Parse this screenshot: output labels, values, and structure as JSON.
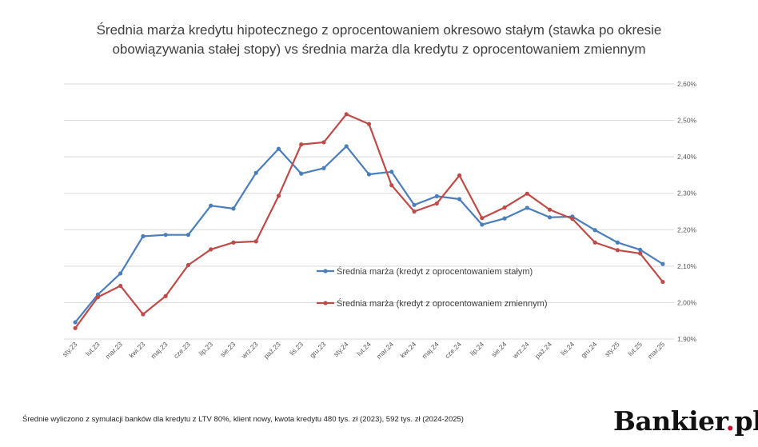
{
  "title_line1": "Średnia marża kredytu hipotecznego z oprocentowaniem okresowo stałym (stawka po okresie",
  "title_line2": "obowiązywania stałej stopy) vs średnia marża dla kredytu z oprocentowaniem zmiennym",
  "footnote": "Średnie wyliczono z symulacji banków dla kredytu z LTV 80%, klient nowy, kwota kredytu 480 tys. zł (2023), 592 tys. zł (2024-2025)",
  "logo": {
    "text": "Bankier",
    "dot": ".",
    "suffix": "pl"
  },
  "colors": {
    "fixed": "#4a7ebb",
    "variable": "#be4b48",
    "grid": "#d9d9d9"
  },
  "chart_data": {
    "type": "line",
    "categories": [
      "sty.23",
      "lut.23",
      "mar.23",
      "kwi.23",
      "maj.23",
      "cze.23",
      "lip.23",
      "sie.23",
      "wrz.23",
      "paź.23",
      "lis.23",
      "gru.23",
      "sty.24",
      "lut.24",
      "mar.24",
      "kwi.24",
      "maj.24",
      "cze.24",
      "lip.24",
      "sie.24",
      "wrz.24",
      "paź.24",
      "lis.24",
      "gru.24",
      "sty.25",
      "lut.25",
      "mar.25"
    ],
    "series": [
      {
        "name": "Średnia marża (kredyt z oprocentowaniem stałym)",
        "color": "#4a7ebb",
        "values": [
          1.946,
          2.022,
          2.08,
          2.182,
          2.186,
          2.186,
          2.266,
          2.258,
          2.356,
          2.422,
          2.354,
          2.369,
          2.429,
          2.352,
          2.359,
          2.268,
          2.292,
          2.284,
          2.214,
          2.231,
          2.26,
          2.234,
          2.236,
          2.199,
          2.165,
          2.145,
          2.106
        ]
      },
      {
        "name": "Średnia marża (kredyt z oprocentowaniem zmiennym)",
        "color": "#be4b48",
        "values": [
          1.93,
          2.015,
          2.046,
          1.968,
          2.018,
          2.103,
          2.146,
          2.165,
          2.168,
          2.293,
          2.434,
          2.44,
          2.517,
          2.49,
          2.322,
          2.25,
          2.272,
          2.349,
          2.232,
          2.261,
          2.299,
          2.255,
          2.23,
          2.165,
          2.144,
          2.135,
          2.057
        ]
      }
    ],
    "y_ticks": [
      "1,90%",
      "2,00%",
      "2,10%",
      "2,20%",
      "2,30%",
      "2,40%",
      "2,50%",
      "2,60%"
    ],
    "ylim": [
      1.9,
      2.6
    ],
    "y_axis_side": "right",
    "grid": true,
    "legend_placement": "center"
  }
}
